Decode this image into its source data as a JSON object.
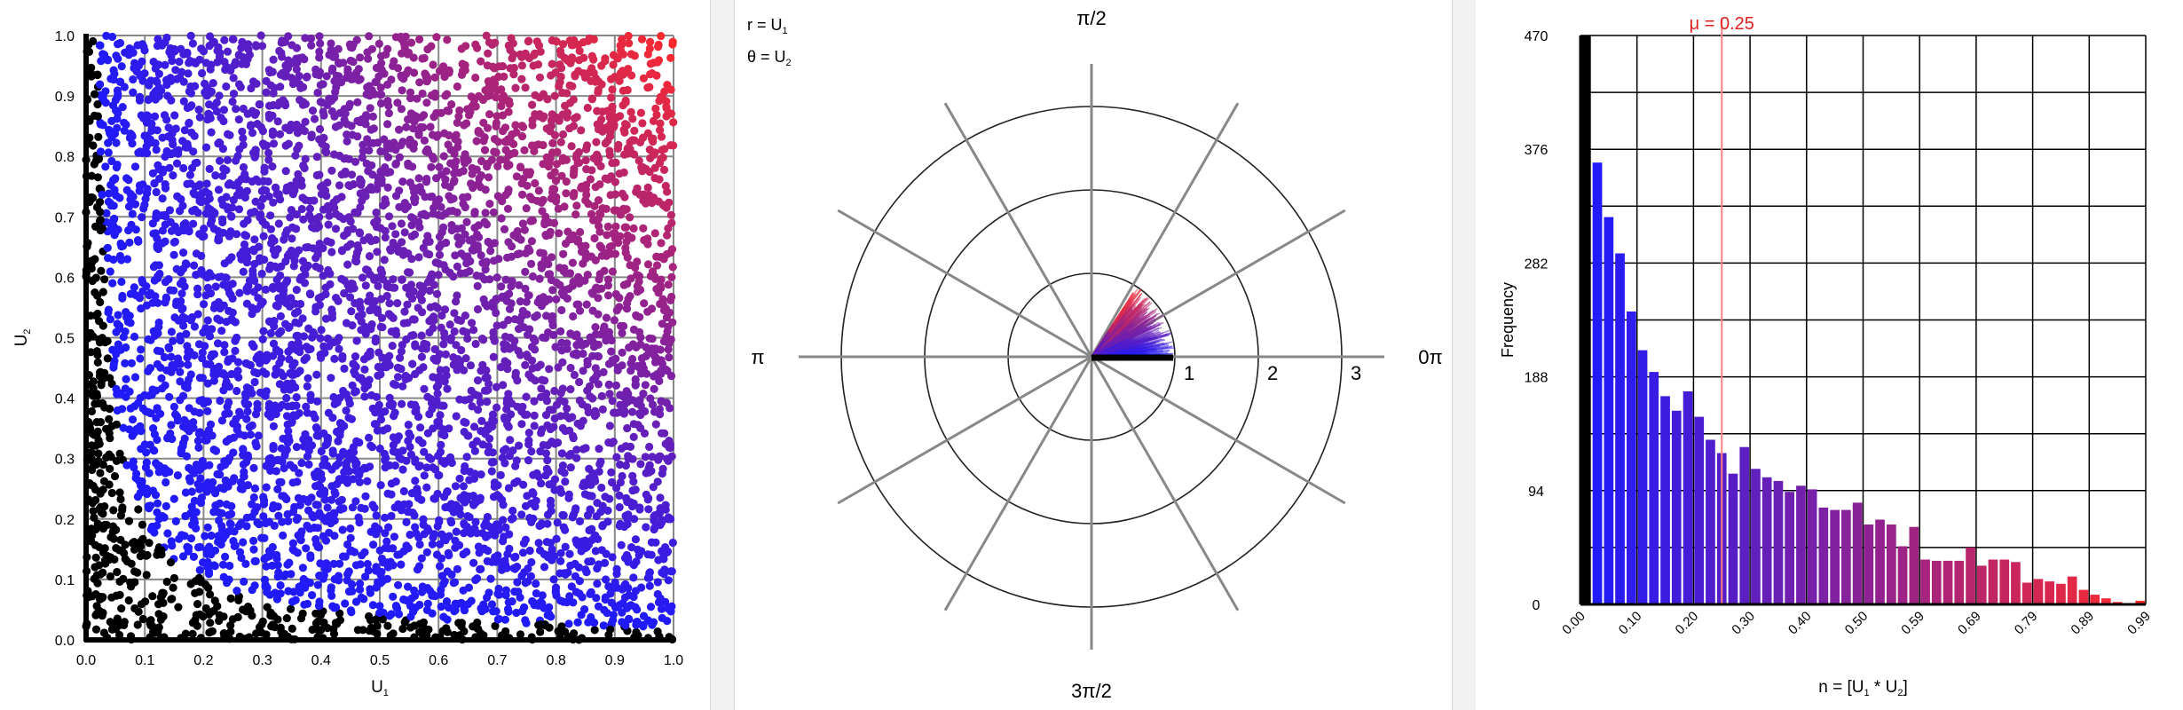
{
  "colors": {
    "blue": "#1a1aff",
    "red": "#ff2a2a",
    "black": "#000000",
    "grid": "#888888",
    "mean_line": "#ff8080",
    "mean_text": "#e02020"
  },
  "scatter": {
    "xlabel": "U",
    "xlabel_sub": "1",
    "ylabel": "U",
    "ylabel_sub": "2",
    "xticks": [
      "0.0",
      "0.1",
      "0.2",
      "0.3",
      "0.4",
      "0.5",
      "0.6",
      "0.7",
      "0.8",
      "0.9",
      "1.0"
    ],
    "yticks": [
      "0.0",
      "0.1",
      "0.2",
      "0.3",
      "0.4",
      "0.5",
      "0.6",
      "0.7",
      "0.8",
      "0.9",
      "1.0"
    ]
  },
  "polar": {
    "legend_r": "r = U",
    "legend_r_sub": "1",
    "legend_theta": "θ = U",
    "legend_theta_sub": "2",
    "angle_labels": {
      "top": "π/2",
      "left": "π",
      "right": "0π",
      "bottom": "3π/2"
    },
    "ring_labels": [
      "1",
      "2",
      "3"
    ]
  },
  "histogram": {
    "ylabel": "Frequency",
    "xlabel": "n = [U",
    "xlabel_sub1": "1",
    "xlabel_mid": " * U",
    "xlabel_sub2": "2",
    "xlabel_end": "]",
    "mean_label": "μ = 0.25",
    "yticks": [
      "0",
      "94",
      "188",
      "282",
      "376",
      "470"
    ],
    "xticks": [
      "0.00",
      "0.10",
      "0.20",
      "0.30",
      "0.40",
      "0.50",
      "0.59",
      "0.69",
      "0.79",
      "0.89",
      "0.99"
    ]
  },
  "chart_data": [
    {
      "type": "scatter",
      "title": "",
      "xlabel": "U1",
      "ylabel": "U2",
      "xlim": [
        0,
        1
      ],
      "ylim": [
        0,
        1
      ],
      "grid": true,
      "description_points": "uniform random points on unit square, colored blue to red by U1*U2; points with U1*U2 < 0.02 drawn black",
      "point_count": 5000
    },
    {
      "type": "polar",
      "title": "",
      "r": "U1",
      "theta": "U2",
      "r_rings": [
        1,
        2,
        3
      ],
      "theta_range": [
        0,
        1
      ],
      "spokes": 12
    },
    {
      "type": "bar",
      "title": "",
      "xlabel": "n = [U1 * U2]",
      "ylabel": "Frequency",
      "ylim": [
        0,
        470
      ],
      "mean": 0.25,
      "bin_width": 0.02,
      "values": [
        470,
        365,
        320,
        290,
        242,
        210,
        192,
        172,
        160,
        176,
        155,
        136,
        125,
        108,
        130,
        112,
        105,
        102,
        93,
        98,
        95,
        80,
        78,
        78,
        84,
        66,
        70,
        66,
        48,
        64,
        37,
        36,
        36,
        36,
        47,
        32,
        37,
        37,
        35,
        18,
        21,
        19,
        17,
        23,
        12,
        8,
        5,
        2,
        1,
        3
      ]
    }
  ]
}
